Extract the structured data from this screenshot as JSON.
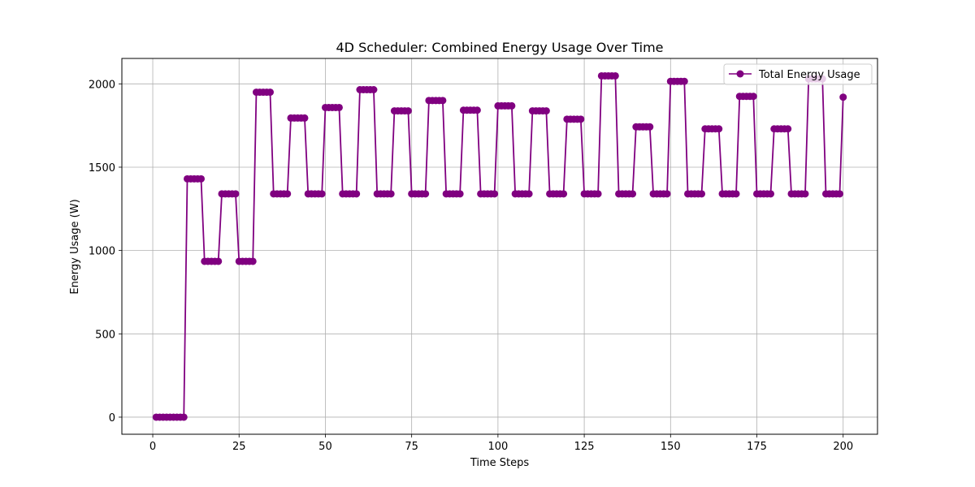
{
  "chart_data": {
    "type": "line",
    "title": "4D Scheduler: Combined Energy Usage Over Time",
    "xlabel": "Time Steps",
    "ylabel": "Energy Usage (W)",
    "xlim": [
      -8.95,
      209.95
    ],
    "ylim": [
      -102.5,
      2152.5
    ],
    "xticks": [
      0,
      25,
      50,
      75,
      100,
      125,
      150,
      175,
      200
    ],
    "yticks": [
      0,
      500,
      1000,
      1500,
      2000
    ],
    "grid": true,
    "legend_position": "upper-right",
    "series": [
      {
        "name": "Total Energy Usage",
        "color": "#800080",
        "marker": "circle",
        "x": [
          1,
          2,
          3,
          4,
          5,
          6,
          7,
          8,
          9,
          10,
          11,
          12,
          13,
          14,
          15,
          16,
          17,
          18,
          19,
          20,
          21,
          22,
          23,
          24,
          25,
          26,
          27,
          28,
          29,
          30,
          31,
          32,
          33,
          34,
          35,
          36,
          37,
          38,
          39,
          40,
          41,
          42,
          43,
          44,
          45,
          46,
          47,
          48,
          49,
          50,
          51,
          52,
          53,
          54,
          55,
          56,
          57,
          58,
          59,
          60,
          61,
          62,
          63,
          64,
          65,
          66,
          67,
          68,
          69,
          70,
          71,
          72,
          73,
          74,
          75,
          76,
          77,
          78,
          79,
          80,
          81,
          82,
          83,
          84,
          85,
          86,
          87,
          88,
          89,
          90,
          91,
          92,
          93,
          94,
          95,
          96,
          97,
          98,
          99,
          100,
          101,
          102,
          103,
          104,
          105,
          106,
          107,
          108,
          109,
          110,
          111,
          112,
          113,
          114,
          115,
          116,
          117,
          118,
          119,
          120,
          121,
          122,
          123,
          124,
          125,
          126,
          127,
          128,
          129,
          130,
          131,
          132,
          133,
          134,
          135,
          136,
          137,
          138,
          139,
          140,
          141,
          142,
          143,
          144,
          145,
          146,
          147,
          148,
          149,
          150,
          151,
          152,
          153,
          154,
          155,
          156,
          157,
          158,
          159,
          160,
          161,
          162,
          163,
          164,
          165,
          166,
          167,
          168,
          169,
          170,
          171,
          172,
          173,
          174,
          175,
          176,
          177,
          178,
          179,
          180,
          181,
          182,
          183,
          184,
          185,
          186,
          187,
          188,
          189,
          190,
          191,
          192,
          193,
          194,
          195,
          196,
          197,
          198,
          199,
          200
        ],
        "values": [
          0,
          0,
          0,
          0,
          0,
          0,
          0,
          0,
          0,
          1430,
          1430,
          1430,
          1430,
          1430,
          935,
          935,
          935,
          935,
          935,
          1340,
          1340,
          1340,
          1340,
          1340,
          935,
          935,
          935,
          935,
          935,
          1950,
          1950,
          1950,
          1950,
          1950,
          1340,
          1340,
          1340,
          1340,
          1340,
          1795,
          1795,
          1795,
          1795,
          1795,
          1340,
          1340,
          1340,
          1340,
          1340,
          1858,
          1858,
          1858,
          1858,
          1858,
          1340,
          1340,
          1340,
          1340,
          1340,
          1965,
          1965,
          1965,
          1965,
          1965,
          1340,
          1340,
          1340,
          1340,
          1340,
          1838,
          1838,
          1838,
          1838,
          1838,
          1340,
          1340,
          1340,
          1340,
          1340,
          1900,
          1900,
          1900,
          1900,
          1900,
          1340,
          1340,
          1340,
          1340,
          1340,
          1842,
          1842,
          1842,
          1842,
          1842,
          1340,
          1340,
          1340,
          1340,
          1340,
          1868,
          1868,
          1868,
          1868,
          1868,
          1340,
          1340,
          1340,
          1340,
          1340,
          1838,
          1838,
          1838,
          1838,
          1838,
          1340,
          1340,
          1340,
          1340,
          1340,
          1788,
          1788,
          1788,
          1788,
          1788,
          1340,
          1340,
          1340,
          1340,
          1340,
          2048,
          2048,
          2048,
          2048,
          2048,
          1340,
          1340,
          1340,
          1340,
          1340,
          1742,
          1742,
          1742,
          1742,
          1742,
          1340,
          1340,
          1340,
          1340,
          1340,
          2015,
          2015,
          2015,
          2015,
          2015,
          1340,
          1340,
          1340,
          1340,
          1340,
          1730,
          1730,
          1730,
          1730,
          1730,
          1340,
          1340,
          1340,
          1340,
          1340,
          1925,
          1925,
          1925,
          1925,
          1925,
          1340,
          1340,
          1340,
          1340,
          1340,
          1730,
          1730,
          1730,
          1730,
          1730,
          1340,
          1340,
          1340,
          1340,
          1340,
          2030,
          2030,
          2030,
          2030,
          2030,
          1340,
          1340,
          1340,
          1340,
          1340,
          1920
        ]
      }
    ]
  }
}
